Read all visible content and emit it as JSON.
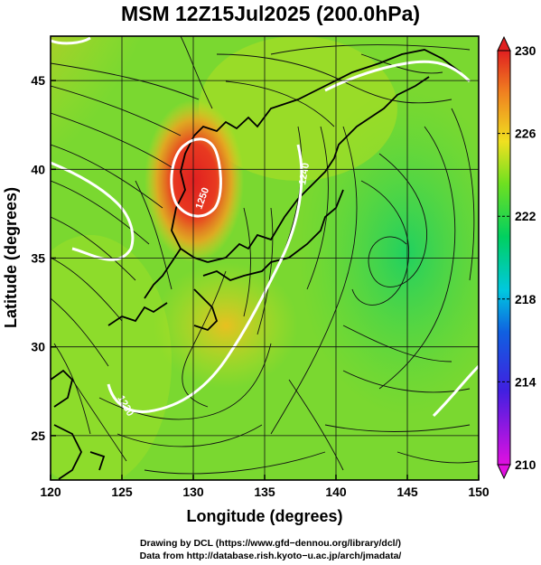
{
  "title": "MSM 12Z15Jul2025 (200.0hPa)",
  "x_axis": {
    "label": "Longitude (degrees)",
    "ticks": [
      120,
      125,
      130,
      135,
      140,
      145,
      150
    ],
    "range": [
      120,
      150
    ]
  },
  "y_axis": {
    "label": "Latitude  (degrees)",
    "ticks": [
      25,
      30,
      35,
      40,
      45
    ],
    "range": [
      22.5,
      47.5
    ]
  },
  "colorbar": {
    "ticks": [
      210,
      214,
      218,
      222,
      226,
      230
    ],
    "range": [
      210,
      230
    ],
    "colors": [
      "#e010e0",
      "#2020e0",
      "#00c0e0",
      "#00d060",
      "#90e020",
      "#f0e020",
      "#f08020",
      "#e02020"
    ]
  },
  "contours": [
    {
      "label": "1250",
      "color": "#ffffff"
    },
    {
      "label": "1240",
      "color": "#ffffff"
    },
    {
      "label": "1230",
      "color": "#ffffff"
    }
  ],
  "credits": {
    "line1": "Drawing by DCL (https://www.gfd−dennou.org/library/dcl/)",
    "line2": "Data from http://database.rish.kyoto−u.ac.jp/arch/jmadata/"
  }
}
